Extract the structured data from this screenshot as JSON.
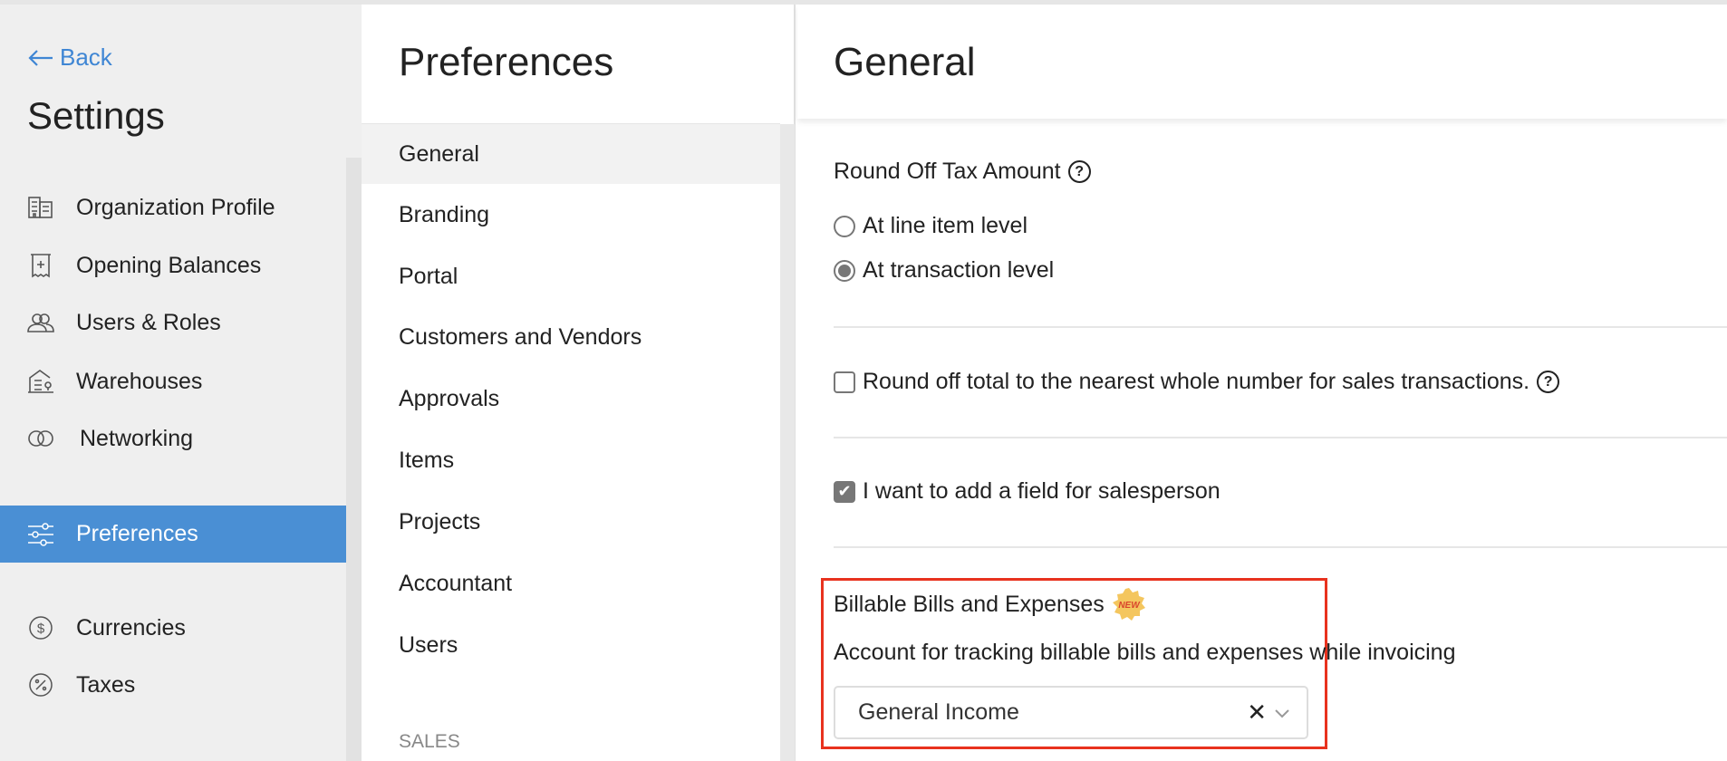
{
  "sidebar": {
    "back_label": "Back",
    "title": "Settings",
    "items": [
      {
        "label": "Organization Profile",
        "icon": "building-icon"
      },
      {
        "label": "Opening Balances",
        "icon": "receipt-icon"
      },
      {
        "label": "Users & Roles",
        "icon": "users-icon"
      },
      {
        "label": "Warehouses",
        "icon": "warehouse-icon"
      },
      {
        "label": "Networking",
        "icon": "rings-icon"
      },
      {
        "label": "Preferences",
        "icon": "sliders-icon",
        "active": true
      },
      {
        "label": "Currencies",
        "icon": "dollar-icon"
      },
      {
        "label": "Taxes",
        "icon": "percent-icon"
      }
    ],
    "active_color": "#4a8fd4"
  },
  "middle": {
    "title": "Preferences",
    "items": [
      "General",
      "Branding",
      "Portal",
      "Customers and Vendors",
      "Approvals",
      "Items",
      "Projects",
      "Accountant",
      "Users"
    ],
    "active": "General",
    "section_label": "SALES"
  },
  "main": {
    "title": "General",
    "round_off_tax": {
      "label": "Round Off Tax Amount",
      "options": [
        "At line item level",
        "At transaction level"
      ],
      "selected": "At transaction level"
    },
    "round_off_total": {
      "label": "Round off total to the nearest whole number for sales transactions.",
      "checked": false
    },
    "salesperson": {
      "label": "I want to add a field for salesperson",
      "checked": true
    },
    "billable": {
      "title": "Billable Bills and Expenses",
      "badge": "NEW",
      "description": "Account for tracking billable bills and expenses while invoicing",
      "account_value": "General Income",
      "highlight_color": "#e8321e"
    }
  }
}
